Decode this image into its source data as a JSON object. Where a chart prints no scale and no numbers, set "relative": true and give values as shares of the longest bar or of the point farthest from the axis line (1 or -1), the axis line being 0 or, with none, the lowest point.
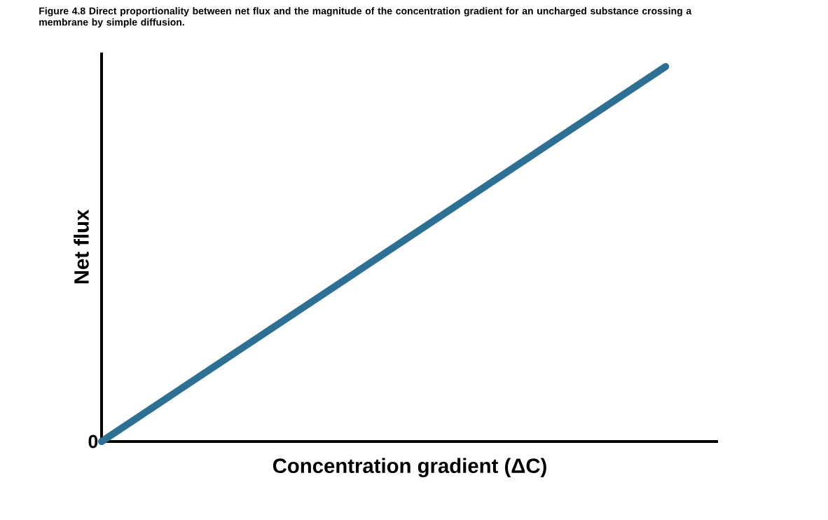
{
  "chart_data": {
    "type": "line",
    "title": "Figure 4.8 Direct proportionality between net flux and the magnitude of the concentration gradient for an uncharged substance crossing a membrane by simple diffusion.",
    "xlabel": "Concentration gradient (ΔC)",
    "ylabel": "Net flux",
    "relative": true,
    "categories": [
      null,
      null
    ],
    "values": [
      0,
      1
    ],
    "color": "#2e7094",
    "annotations": [
      "0"
    ]
  }
}
